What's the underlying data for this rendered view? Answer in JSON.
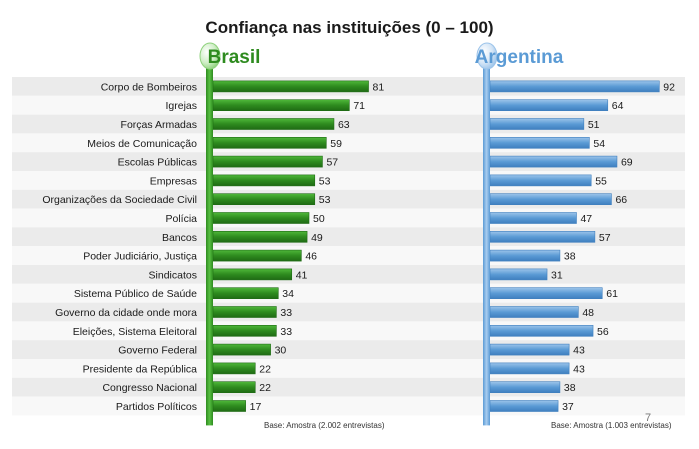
{
  "chart_data": {
    "type": "bar",
    "orientation": "horizontal",
    "title": "Confiança nas instituições (0 – 100)",
    "categories": [
      "Corpo de Bombeiros",
      "Igrejas",
      "Forças Armadas",
      "Meios de Comunicação",
      "Escolas Públicas",
      "Empresas",
      "Organizações da Sociedade Civil",
      "Polícia",
      "Bancos",
      "Poder Judiciário, Justiça",
      "Sindicatos",
      "Sistema Público de Saúde",
      "Governo da cidade onde mora",
      "Eleições, Sistema Eleitoral",
      "Governo Federal",
      "Presidente da República",
      "Congresso Nacional",
      "Partidos Políticos"
    ],
    "series": [
      {
        "name": "Brasil",
        "values": [
          81,
          71,
          63,
          59,
          57,
          53,
          53,
          50,
          49,
          46,
          41,
          34,
          33,
          33,
          30,
          22,
          22,
          17
        ],
        "color": "#2e8b1f",
        "base_note": "Base: Amostra  (2.002 entrevistas)"
      },
      {
        "name": "Argentina",
        "values": [
          92,
          64,
          51,
          54,
          69,
          55,
          66,
          47,
          57,
          38,
          31,
          61,
          48,
          56,
          43,
          43,
          38,
          37
        ],
        "color": "#5b9bd5",
        "base_note": "Base: Amostra  (1.003 entrevistas)"
      }
    ],
    "xlim": [
      0,
      100
    ],
    "grid": false,
    "legend": "none"
  },
  "page_number": "7"
}
